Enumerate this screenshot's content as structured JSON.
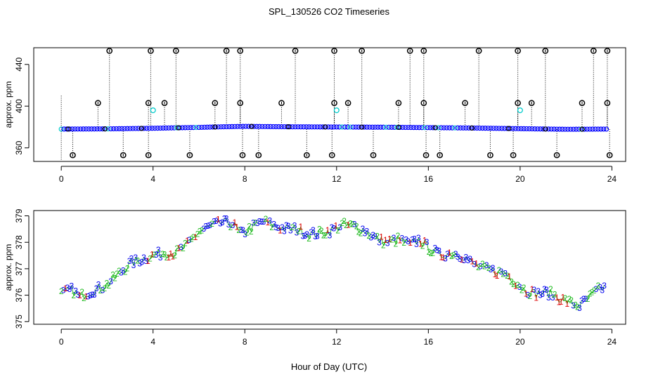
{
  "chart_data": [
    {
      "type": "scatter",
      "title": "SPL_130526  CO2 Timeseries",
      "xlabel": "",
      "ylabel": "approx. ppm",
      "xlim": [
        -1.2,
        24.6
      ],
      "ylim": [
        347,
        456
      ],
      "xticks": [
        "0",
        "4",
        "8",
        "12",
        "16",
        "20",
        "24"
      ],
      "yticks": [
        "360",
        "400",
        "440"
      ],
      "baseline": [
        [
          0.0,
          378.0
        ],
        [
          2.0,
          378.2
        ],
        [
          4.0,
          378.8
        ],
        [
          6.0,
          379.6
        ],
        [
          7.0,
          380.2
        ],
        [
          8.0,
          380.6
        ],
        [
          10.0,
          380.2
        ],
        [
          12.0,
          380.0
        ],
        [
          14.0,
          379.8
        ],
        [
          16.0,
          379.4
        ],
        [
          18.0,
          379.0
        ],
        [
          20.0,
          378.4
        ],
        [
          22.0,
          377.8
        ],
        [
          23.8,
          378.0
        ]
      ],
      "high_outliers": [
        [
          2.1,
          453
        ],
        [
          3.9,
          453
        ],
        [
          5.0,
          453
        ],
        [
          7.2,
          453
        ],
        [
          7.8,
          453
        ],
        [
          10.2,
          453
        ],
        [
          11.9,
          453
        ],
        [
          13.1,
          453
        ],
        [
          15.2,
          453
        ],
        [
          15.8,
          453
        ],
        [
          18.2,
          453
        ],
        [
          19.9,
          453
        ],
        [
          21.1,
          453
        ],
        [
          23.2,
          453
        ],
        [
          23.8,
          453
        ]
      ],
      "mid_outliers": [
        [
          1.6,
          403
        ],
        [
          3.8,
          403
        ],
        [
          4.5,
          403
        ],
        [
          6.7,
          403
        ],
        [
          7.8,
          403
        ],
        [
          9.6,
          403
        ],
        [
          11.9,
          403
        ],
        [
          12.5,
          403
        ],
        [
          14.7,
          403
        ],
        [
          15.8,
          403
        ],
        [
          17.6,
          403
        ],
        [
          19.9,
          403
        ],
        [
          20.5,
          403
        ],
        [
          22.7,
          403
        ],
        [
          23.8,
          403
        ]
      ],
      "low_outliers": [
        [
          0.5,
          353
        ],
        [
          2.7,
          353
        ],
        [
          3.8,
          353
        ],
        [
          5.6,
          353
        ],
        [
          7.9,
          353
        ],
        [
          8.6,
          353
        ],
        [
          10.7,
          353
        ],
        [
          11.8,
          353
        ],
        [
          13.6,
          353
        ],
        [
          15.9,
          353
        ],
        [
          16.5,
          353
        ],
        [
          18.7,
          353
        ],
        [
          19.7,
          353
        ],
        [
          21.6,
          353
        ],
        [
          23.9,
          353
        ]
      ],
      "cyan_points": [
        [
          4.0,
          396
        ],
        [
          12.0,
          396
        ],
        [
          20.0,
          396
        ]
      ]
    },
    {
      "type": "scatter",
      "title": "",
      "xlabel": "Hour of Day (UTC)",
      "ylabel": "approx. ppm",
      "xlim": [
        -1.2,
        24.6
      ],
      "ylim": [
        374.9,
        379.2
      ],
      "xticks": [
        "0",
        "4",
        "8",
        "12",
        "16",
        "20",
        "24"
      ],
      "yticks": [
        "375",
        "376",
        "377",
        "378",
        "379"
      ],
      "legend_symbols": [
        "1",
        "2",
        "3"
      ],
      "trend": [
        [
          0.0,
          376.05
        ],
        [
          0.5,
          376.2
        ],
        [
          0.8,
          375.9
        ],
        [
          1.0,
          376.05
        ],
        [
          1.5,
          376.2
        ],
        [
          2.0,
          376.4
        ],
        [
          2.5,
          376.8
        ],
        [
          3.0,
          377.2
        ],
        [
          3.5,
          377.35
        ],
        [
          4.0,
          377.5
        ],
        [
          4.5,
          377.6
        ],
        [
          5.0,
          377.6
        ],
        [
          5.5,
          377.9
        ],
        [
          6.0,
          378.4
        ],
        [
          6.5,
          378.6
        ],
        [
          7.0,
          378.75
        ],
        [
          7.5,
          378.7
        ],
        [
          7.8,
          378.3
        ],
        [
          8.2,
          378.5
        ],
        [
          8.8,
          378.8
        ],
        [
          9.3,
          378.6
        ],
        [
          9.8,
          378.5
        ],
        [
          10.3,
          378.5
        ],
        [
          10.8,
          378.3
        ],
        [
          11.3,
          378.35
        ],
        [
          11.8,
          378.45
        ],
        [
          12.2,
          378.65
        ],
        [
          12.8,
          378.6
        ],
        [
          13.3,
          378.4
        ],
        [
          13.8,
          378.1
        ],
        [
          14.2,
          378.0
        ],
        [
          14.7,
          378.1
        ],
        [
          15.2,
          377.9
        ],
        [
          15.6,
          378.1
        ],
        [
          16.0,
          377.8
        ],
        [
          16.5,
          377.5
        ],
        [
          17.0,
          377.6
        ],
        [
          17.5,
          377.5
        ],
        [
          17.9,
          377.2
        ],
        [
          18.4,
          377.0
        ],
        [
          18.9,
          376.9
        ],
        [
          19.4,
          376.8
        ],
        [
          19.8,
          376.5
        ],
        [
          20.2,
          376.2
        ],
        [
          20.7,
          376.05
        ],
        [
          21.2,
          376.1
        ],
        [
          21.7,
          375.9
        ],
        [
          22.2,
          375.7
        ],
        [
          22.6,
          375.6
        ],
        [
          23.0,
          375.9
        ],
        [
          23.4,
          376.2
        ],
        [
          23.7,
          376.3
        ]
      ]
    }
  ]
}
